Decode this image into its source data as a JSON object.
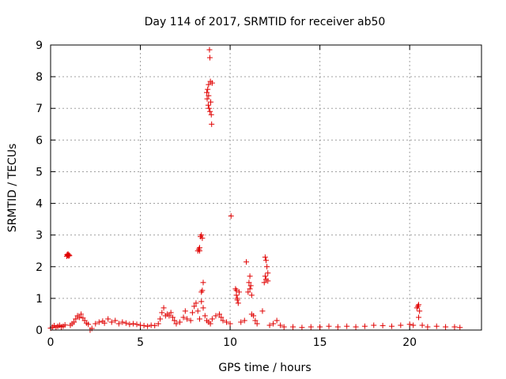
{
  "chart_data": {
    "type": "scatter",
    "title": "Day 114 of 2017, SRMTID for receiver ab50",
    "xlabel": "GPS time / hours",
    "ylabel": "SRMTID / TECUs",
    "xlim": [
      0,
      24
    ],
    "ylim": [
      0,
      9
    ],
    "x_ticks": [
      0,
      5,
      10,
      15,
      20
    ],
    "y_ticks": [
      0,
      1,
      2,
      3,
      4,
      5,
      6,
      7,
      8,
      9
    ],
    "grid": true,
    "marker": "+",
    "color": "#e00000",
    "series": [
      {
        "points": [
          [
            0.0,
            0.06
          ],
          [
            0.1,
            0.1
          ],
          [
            0.2,
            0.14
          ],
          [
            0.3,
            0.08
          ],
          [
            0.4,
            0.12
          ],
          [
            0.5,
            0.15
          ],
          [
            0.6,
            0.1
          ],
          [
            0.7,
            0.12
          ],
          [
            0.8,
            0.16
          ],
          [
            0.9,
            2.33
          ],
          [
            0.92,
            2.38
          ],
          [
            0.95,
            2.36
          ],
          [
            0.97,
            2.4
          ],
          [
            1.0,
            2.34
          ],
          [
            1.02,
            2.37
          ],
          [
            1.05,
            2.35
          ],
          [
            1.1,
            0.15
          ],
          [
            1.2,
            0.2
          ],
          [
            1.3,
            0.25
          ],
          [
            1.4,
            0.35
          ],
          [
            1.5,
            0.45
          ],
          [
            1.6,
            0.4
          ],
          [
            1.7,
            0.5
          ],
          [
            1.8,
            0.38
          ],
          [
            1.9,
            0.3
          ],
          [
            2.0,
            0.22
          ],
          [
            2.1,
            0.18
          ],
          [
            2.2,
            0.0
          ],
          [
            2.3,
            0.05
          ],
          [
            2.5,
            0.2
          ],
          [
            2.7,
            0.25
          ],
          [
            2.9,
            0.28
          ],
          [
            3.0,
            0.22
          ],
          [
            3.2,
            0.35
          ],
          [
            3.4,
            0.25
          ],
          [
            3.6,
            0.3
          ],
          [
            3.8,
            0.2
          ],
          [
            4.0,
            0.25
          ],
          [
            4.2,
            0.22
          ],
          [
            4.4,
            0.18
          ],
          [
            4.6,
            0.2
          ],
          [
            4.8,
            0.18
          ],
          [
            5.0,
            0.15
          ],
          [
            5.2,
            0.14
          ],
          [
            5.4,
            0.12
          ],
          [
            5.6,
            0.15
          ],
          [
            5.8,
            0.14
          ],
          [
            6.0,
            0.2
          ],
          [
            6.1,
            0.35
          ],
          [
            6.2,
            0.55
          ],
          [
            6.3,
            0.7
          ],
          [
            6.4,
            0.45
          ],
          [
            6.5,
            0.5
          ],
          [
            6.6,
            0.45
          ],
          [
            6.7,
            0.55
          ],
          [
            6.8,
            0.4
          ],
          [
            6.9,
            0.3
          ],
          [
            7.0,
            0.2
          ],
          [
            7.2,
            0.25
          ],
          [
            7.4,
            0.4
          ],
          [
            7.5,
            0.6
          ],
          [
            7.6,
            0.35
          ],
          [
            7.8,
            0.3
          ],
          [
            7.9,
            0.55
          ],
          [
            8.0,
            0.75
          ],
          [
            8.1,
            0.85
          ],
          [
            8.2,
            0.6
          ],
          [
            8.3,
            0.35
          ],
          [
            8.2,
            2.5
          ],
          [
            8.25,
            2.55
          ],
          [
            8.3,
            2.6
          ],
          [
            8.35,
            2.95
          ],
          [
            8.4,
            3.0
          ],
          [
            8.45,
            2.9
          ],
          [
            8.3,
            2.5
          ],
          [
            8.4,
            1.2
          ],
          [
            8.45,
            1.25
          ],
          [
            8.5,
            1.5
          ],
          [
            8.4,
            0.9
          ],
          [
            8.5,
            0.7
          ],
          [
            8.6,
            0.45
          ],
          [
            8.7,
            7.5
          ],
          [
            8.72,
            7.3
          ],
          [
            8.75,
            7.6
          ],
          [
            8.78,
            7.1
          ],
          [
            8.8,
            7.75
          ],
          [
            8.82,
            7.0
          ],
          [
            8.85,
            8.85
          ],
          [
            8.87,
            8.6
          ],
          [
            8.9,
            7.85
          ],
          [
            8.92,
            7.2
          ],
          [
            8.95,
            6.8
          ],
          [
            8.97,
            6.5
          ],
          [
            9.0,
            7.8
          ],
          [
            8.88,
            6.9
          ],
          [
            8.8,
            7.4
          ],
          [
            8.7,
            0.3
          ],
          [
            8.8,
            0.25
          ],
          [
            8.9,
            0.2
          ],
          [
            9.0,
            0.35
          ],
          [
            9.2,
            0.45
          ],
          [
            9.4,
            0.5
          ],
          [
            9.5,
            0.4
          ],
          [
            9.6,
            0.3
          ],
          [
            9.8,
            0.25
          ],
          [
            10.0,
            0.2
          ],
          [
            10.05,
            3.6
          ],
          [
            10.3,
            1.3
          ],
          [
            10.35,
            1.1
          ],
          [
            10.4,
            1.0
          ],
          [
            10.45,
            0.85
          ],
          [
            10.5,
            1.2
          ],
          [
            10.35,
            1.25
          ],
          [
            10.4,
            0.95
          ],
          [
            10.6,
            0.25
          ],
          [
            10.8,
            0.3
          ],
          [
            10.9,
            2.15
          ],
          [
            11.0,
            1.2
          ],
          [
            11.05,
            1.5
          ],
          [
            11.1,
            1.7
          ],
          [
            11.15,
            1.4
          ],
          [
            11.2,
            1.1
          ],
          [
            11.1,
            1.3
          ],
          [
            11.2,
            0.5
          ],
          [
            11.3,
            0.45
          ],
          [
            11.4,
            0.3
          ],
          [
            11.5,
            0.2
          ],
          [
            11.8,
            0.6
          ],
          [
            11.9,
            1.5
          ],
          [
            11.95,
            1.7
          ],
          [
            12.0,
            2.2
          ],
          [
            12.05,
            2.0
          ],
          [
            12.1,
            1.8
          ],
          [
            12.0,
            1.6
          ],
          [
            12.1,
            1.55
          ],
          [
            11.95,
            2.3
          ],
          [
            12.2,
            0.15
          ],
          [
            12.4,
            0.2
          ],
          [
            12.6,
            0.3
          ],
          [
            12.8,
            0.15
          ],
          [
            13.0,
            0.1
          ],
          [
            13.5,
            0.1
          ],
          [
            14.0,
            0.08
          ],
          [
            14.5,
            0.1
          ],
          [
            15.0,
            0.1
          ],
          [
            15.5,
            0.12
          ],
          [
            16.0,
            0.1
          ],
          [
            16.5,
            0.12
          ],
          [
            17.0,
            0.1
          ],
          [
            17.5,
            0.12
          ],
          [
            18.0,
            0.15
          ],
          [
            18.5,
            0.14
          ],
          [
            19.0,
            0.12
          ],
          [
            19.5,
            0.15
          ],
          [
            20.0,
            0.18
          ],
          [
            20.2,
            0.15
          ],
          [
            20.4,
            0.7
          ],
          [
            20.45,
            0.75
          ],
          [
            20.5,
            0.8
          ],
          [
            20.55,
            0.6
          ],
          [
            20.5,
            0.4
          ],
          [
            20.7,
            0.15
          ],
          [
            21.0,
            0.1
          ],
          [
            21.5,
            0.12
          ],
          [
            22.0,
            0.1
          ],
          [
            22.5,
            0.1
          ],
          [
            22.8,
            0.08
          ]
        ]
      }
    ]
  }
}
